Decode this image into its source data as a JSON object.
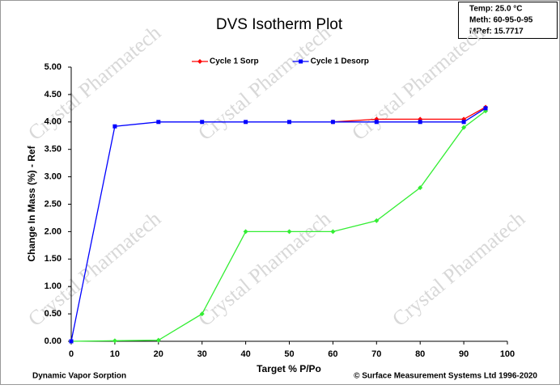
{
  "chart_data": {
    "type": "line",
    "title": "DVS Isotherm Plot",
    "x_label": "Target % P/Po",
    "y_label": "Change In Mass (%) - Ref",
    "info": [
      "Temp: 25.0 °C",
      "Meth: 60-95-0-95",
      "MRef: 15.7717"
    ],
    "footer_left": "Dynamic Vapor Sorption",
    "footer_right": "© Surface Measurement Systems Ltd 1996-2020",
    "watermark": "Crystal Pharmatech",
    "xlim": [
      0,
      100
    ],
    "xticks": [
      0,
      10,
      20,
      30,
      40,
      50,
      60,
      70,
      80,
      90,
      100
    ],
    "ylim": [
      0,
      5
    ],
    "yticks": [
      {
        "value": 0,
        "label": "0.00"
      },
      {
        "value": 0.5,
        "label": "0.50"
      },
      {
        "value": 1,
        "label": "1.00"
      },
      {
        "value": 1.5,
        "label": "1.50"
      },
      {
        "value": 2,
        "label": "2.00"
      },
      {
        "value": 2.5,
        "label": "2.50"
      },
      {
        "value": 3,
        "label": "3.00"
      },
      {
        "value": 3.5,
        "label": "3.50"
      },
      {
        "value": 4,
        "label": "4.00"
      },
      {
        "value": 4.5,
        "label": "4.50"
      },
      {
        "value": 5,
        "label": "5.00"
      }
    ],
    "series": [
      {
        "name": "Cycle 1 Sorp",
        "color": "#ff0000",
        "marker": "diamond",
        "x": [
          60,
          70,
          80,
          90,
          95
        ],
        "values": [
          4.0,
          4.05,
          4.05,
          4.05,
          4.27
        ]
      },
      {
        "name": "Cycle 1 Desorp",
        "color": "#0000ff",
        "marker": "square",
        "x": [
          95,
          90,
          80,
          70,
          60,
          50,
          40,
          30,
          20,
          10,
          0
        ],
        "values": [
          4.25,
          4.0,
          4.0,
          4.0,
          4.0,
          4.0,
          4.0,
          4.0,
          4.0,
          3.92,
          0
        ]
      },
      {
        "color": "#33ee33",
        "marker": "diamond",
        "x": [
          0,
          10,
          20,
          30,
          40,
          50,
          60,
          70,
          80,
          90,
          95
        ],
        "values": [
          0,
          0.01,
          0.02,
          0.5,
          2.0,
          2.0,
          2.0,
          2.2,
          2.8,
          3.9,
          4.2
        ]
      }
    ]
  }
}
